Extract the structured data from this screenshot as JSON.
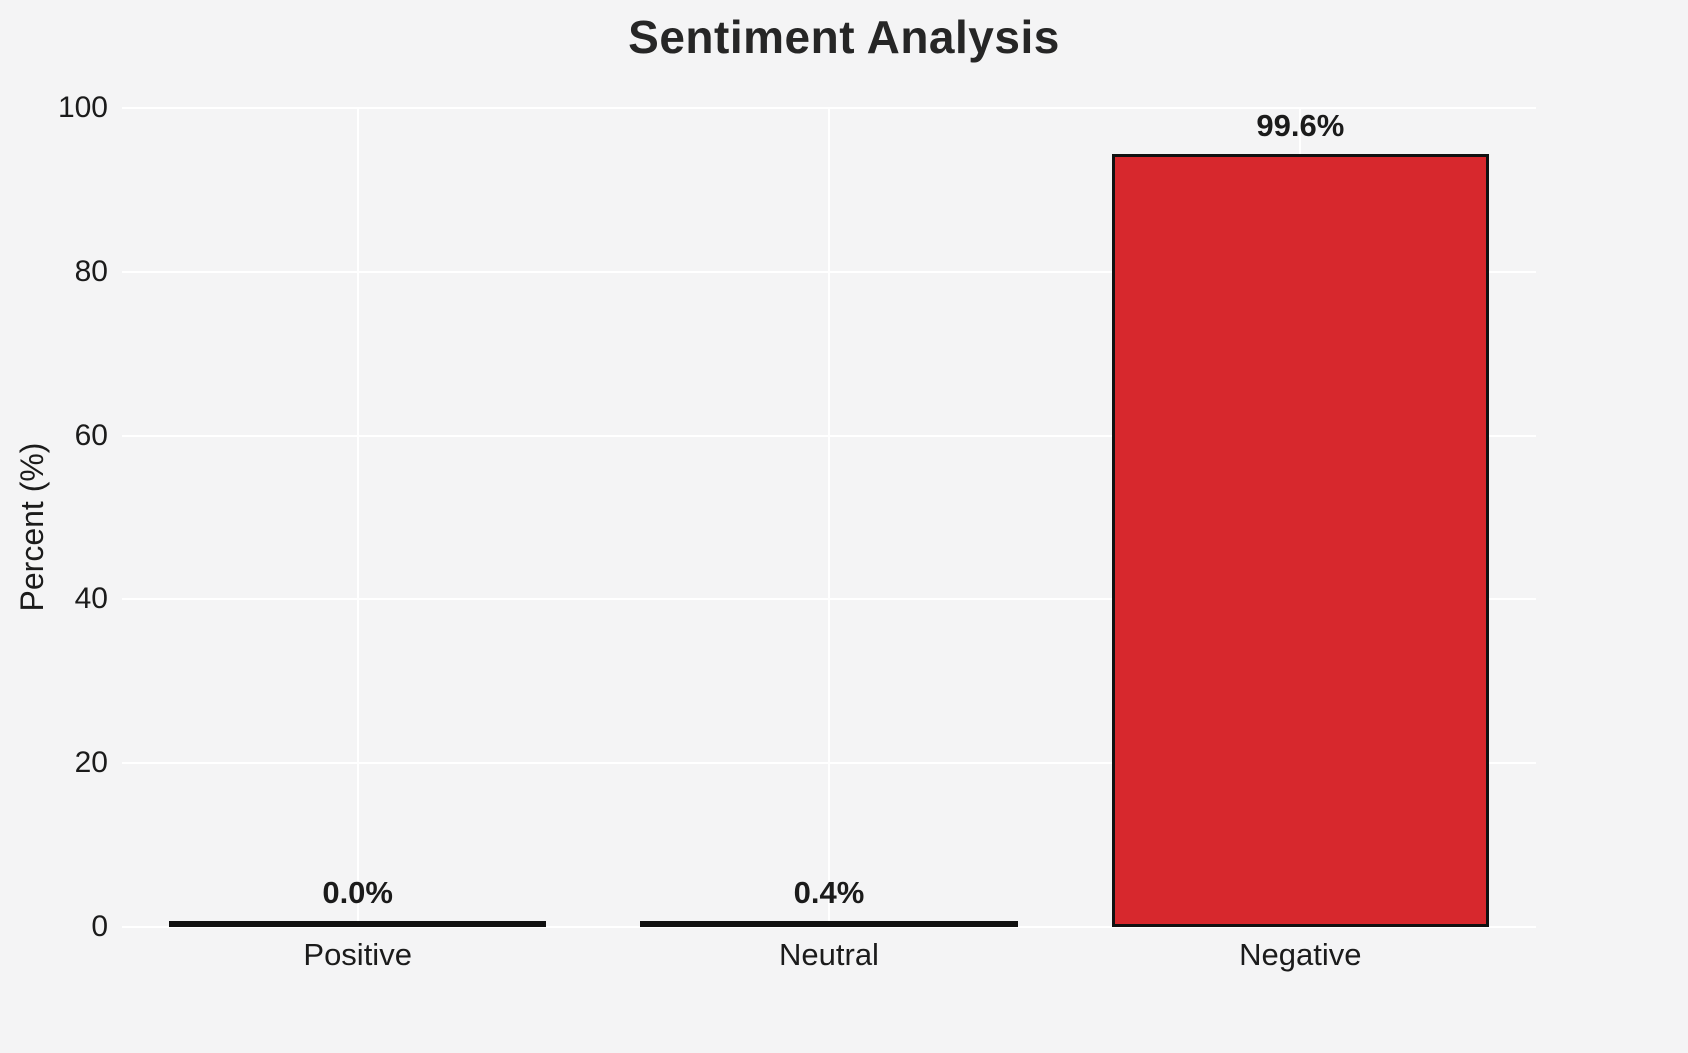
{
  "chart_data": {
    "type": "bar",
    "title": "Sentiment Analysis",
    "ylabel": "Percent (%)",
    "xlabel": "",
    "categories": [
      "Positive",
      "Neutral",
      "Negative"
    ],
    "values": [
      0.0,
      0.4,
      99.6
    ],
    "value_labels": [
      "0.0%",
      "0.4%",
      "99.6%"
    ],
    "bar_colors": [
      "#c9c9c9",
      "#eae43a",
      "#d7282d"
    ],
    "bar_edge_color": "#111111",
    "ylim": [
      0,
      100
    ],
    "yticks": [
      0,
      20,
      40,
      60,
      80,
      100
    ],
    "legend": "none",
    "grid": "white horizontal and vertical gridlines on light gray background",
    "background_color": "#f4f4f5"
  }
}
